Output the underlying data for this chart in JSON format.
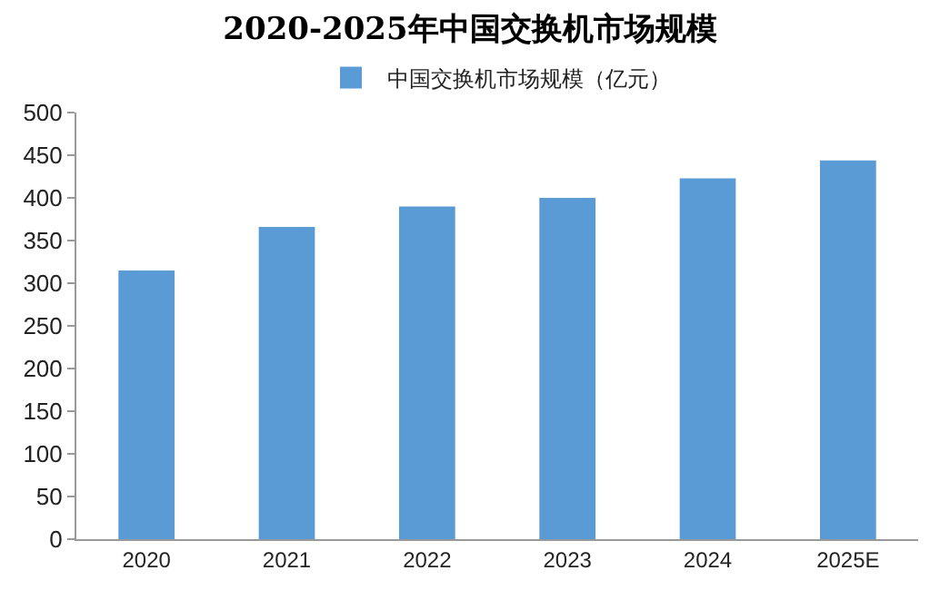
{
  "chart_data": {
    "type": "bar",
    "title": "2020-2025年中国交换机市场规模",
    "categories": [
      "2020",
      "2021",
      "2022",
      "2023",
      "2024",
      "2025E"
    ],
    "series": [
      {
        "name": "中国交换机市场规模（亿元）",
        "color": "#5b9bd5",
        "values": [
          315,
          366,
          390,
          400,
          423,
          444
        ]
      }
    ],
    "ylim": [
      0,
      500
    ],
    "yticks": [
      0,
      50,
      100,
      150,
      200,
      250,
      300,
      350,
      400,
      450,
      500
    ],
    "legend": "top"
  }
}
